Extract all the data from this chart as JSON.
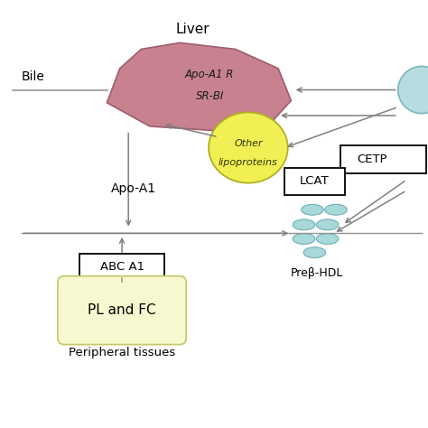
{
  "bg_color": "#ffffff",
  "liver_color": "#c8828f",
  "liver_edge_color": "#a06070",
  "liver_text": [
    "Apo-A1 R",
    "SR-BI"
  ],
  "liver_label": "Liver",
  "other_lipo_color": "#f0f055",
  "other_lipo_edge": "#b0b020",
  "other_lipo_text": [
    "Other",
    "lipoproteins"
  ],
  "bile_text": "Bile",
  "apo_a1_text": "Apo-A1",
  "abc_box_text": "ABC A1",
  "pl_fc_text": "PL and FC",
  "peripheral_text": "Peripheral tissues",
  "lcat_text": "LCAT",
  "cetp_text": "CETP",
  "prebeta_hdl_text": "Preβ-HDL",
  "hdl_disc_color": "#a8d8d8",
  "hdl_disc_edge": "#70b0b8",
  "hdl_circle_color": "#b8dde0",
  "hdl_circle_edge": "#80b8c0",
  "yellow_box_color": "#f8f8d0",
  "yellow_box_edge": "#c8c870",
  "arrow_color": "#808080",
  "line_color": "#909090",
  "text_color": "#000000",
  "liver_verts_x": [
    2.5,
    2.8,
    3.3,
    4.2,
    5.5,
    6.5,
    6.8,
    6.3,
    5.0,
    3.5,
    2.5
  ],
  "liver_verts_y": [
    7.6,
    8.4,
    8.85,
    9.0,
    8.85,
    8.4,
    7.65,
    7.1,
    6.95,
    7.05,
    7.6
  ]
}
